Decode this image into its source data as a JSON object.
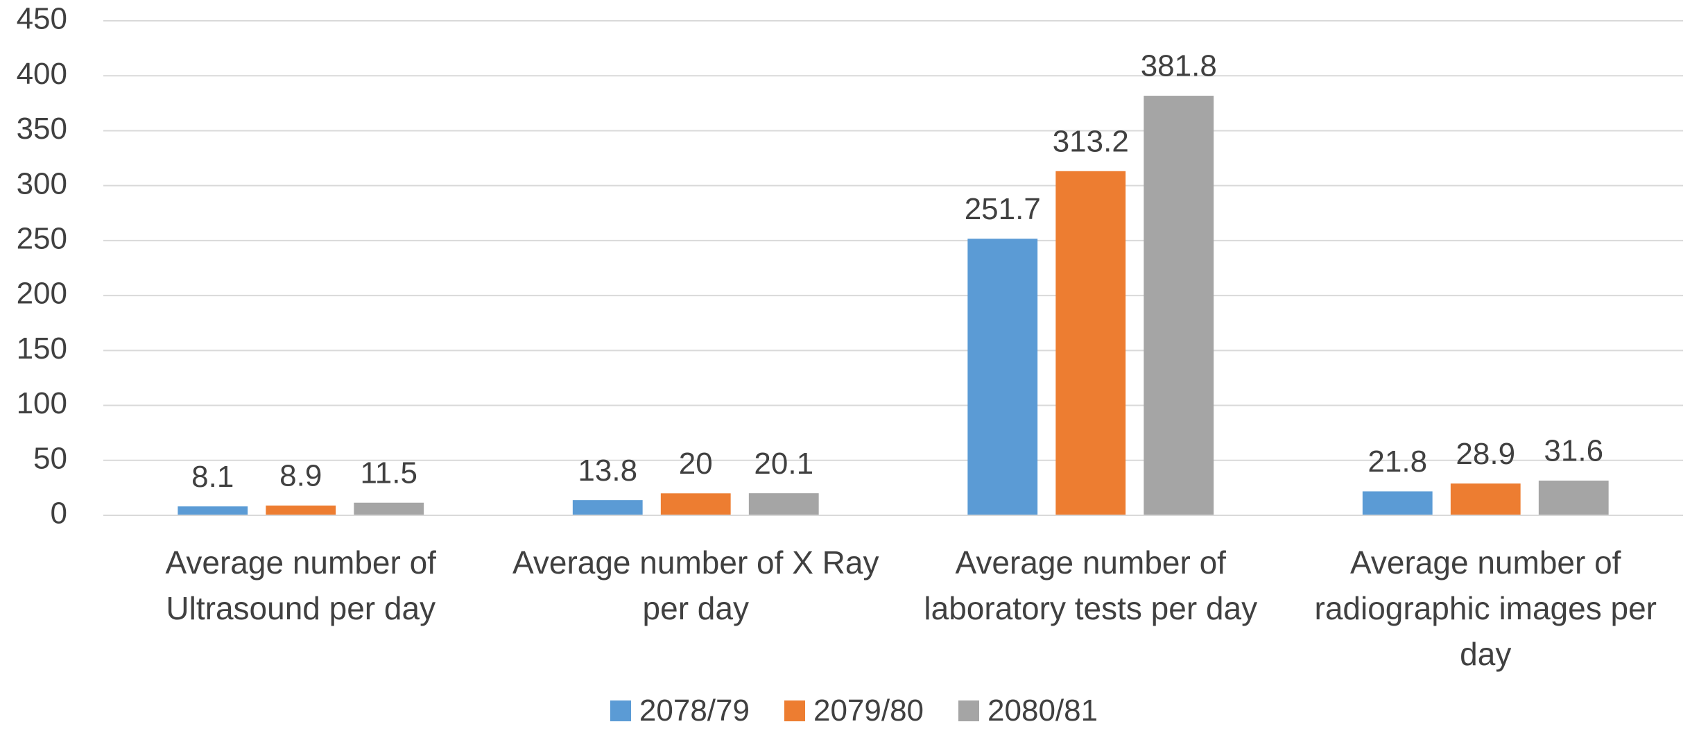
{
  "chart_data": {
    "type": "bar",
    "categories": [
      "Average number of Ultrasound per day",
      "Average number of X Ray per day",
      "Average number of laboratory tests per day",
      "Average number of radiographic images per day"
    ],
    "series": [
      {
        "name": "2078/79",
        "color": "#5b9bd5",
        "values": [
          8.1,
          13.8,
          251.7,
          21.8
        ]
      },
      {
        "name": "2079/80",
        "color": "#ed7d31",
        "values": [
          8.9,
          20,
          313.2,
          28.9
        ]
      },
      {
        "name": "2080/81",
        "color": "#a5a5a5",
        "values": [
          11.5,
          20.1,
          381.8,
          31.6
        ]
      }
    ],
    "ylim": [
      0,
      450
    ],
    "yticks": [
      0,
      50,
      100,
      150,
      200,
      250,
      300,
      350,
      400,
      450
    ],
    "grid": true,
    "legend": "bottom"
  }
}
